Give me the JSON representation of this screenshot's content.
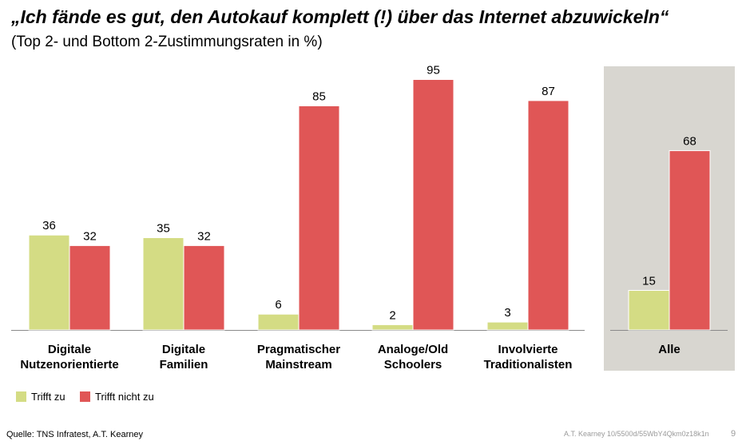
{
  "header": {
    "title": "„Ich fände es gut, den Autokauf komplett (!) über das Internet abzuwickeln“",
    "subtitle": "(Top 2- und Bottom 2-Zustimmungsraten in %)"
  },
  "chart_data": {
    "type": "bar",
    "title": "„Ich fände es gut, den Autokauf komplett (!) über das Internet abzuwickeln“",
    "subtitle": "(Top 2- und Bottom 2-Zustimmungsraten in %)",
    "categories": [
      [
        "Digitale",
        "Nutzenorientierte"
      ],
      [
        "Digitale",
        "Familien"
      ],
      [
        "Pragmatischer",
        "Mainstream"
      ],
      [
        "Analoge/Old",
        "Schoolers"
      ],
      [
        "Involvierte",
        "Traditionalisten"
      ],
      [
        "Alle"
      ]
    ],
    "series": [
      {
        "name": "Trifft zu",
        "color": "#d4dc84",
        "values": [
          36,
          35,
          6,
          2,
          3,
          15
        ]
      },
      {
        "name": "Trifft nicht zu",
        "color": "#e05656",
        "values": [
          32,
          32,
          85,
          95,
          87,
          68
        ]
      }
    ],
    "highlight_category": "Alle",
    "highlight_color": "#d8d6d0",
    "ylim": [
      0,
      100
    ],
    "grid": false,
    "legend_position": "bottom-left"
  },
  "footer": {
    "source": "Quelle: TNS Infratest, A.T. Kearney",
    "doc_id": "A.T. Kearney 10/5500d/55WbY4Qkm0z18k1n",
    "page_number": "9"
  }
}
